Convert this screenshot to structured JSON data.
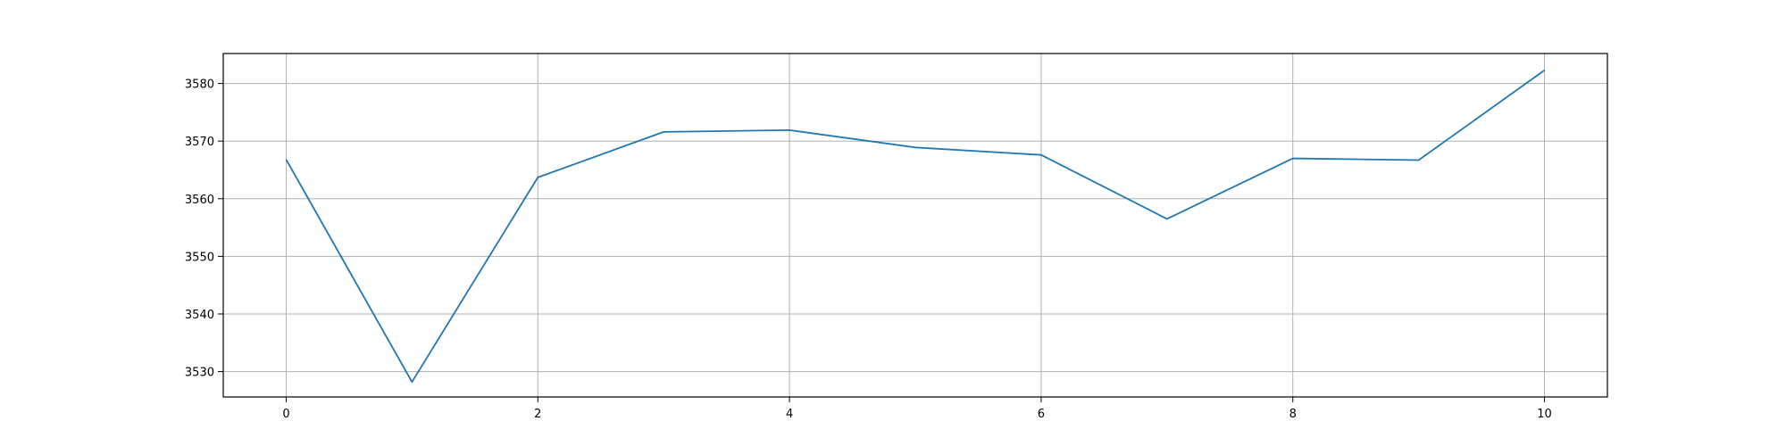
{
  "chart_data": {
    "type": "line",
    "title": "",
    "xlabel": "",
    "ylabel": "",
    "x": [
      0,
      1,
      2,
      3,
      4,
      5,
      6,
      7,
      8,
      9,
      10
    ],
    "series": [
      {
        "values": [
          3566.8,
          3528.2,
          3563.7,
          3571.6,
          3571.9,
          3568.9,
          3567.6,
          3556.5,
          3567.0,
          3566.7,
          3582.3
        ],
        "color": "#1f77b4"
      }
    ],
    "xlim": [
      -0.5,
      10.5
    ],
    "ylim": [
      3525.6,
      3585.2
    ],
    "xticks": [
      0,
      2,
      4,
      6,
      8,
      10
    ],
    "yticks": [
      3530,
      3540,
      3550,
      3560,
      3570,
      3580
    ],
    "grid": true,
    "legend": "none"
  }
}
